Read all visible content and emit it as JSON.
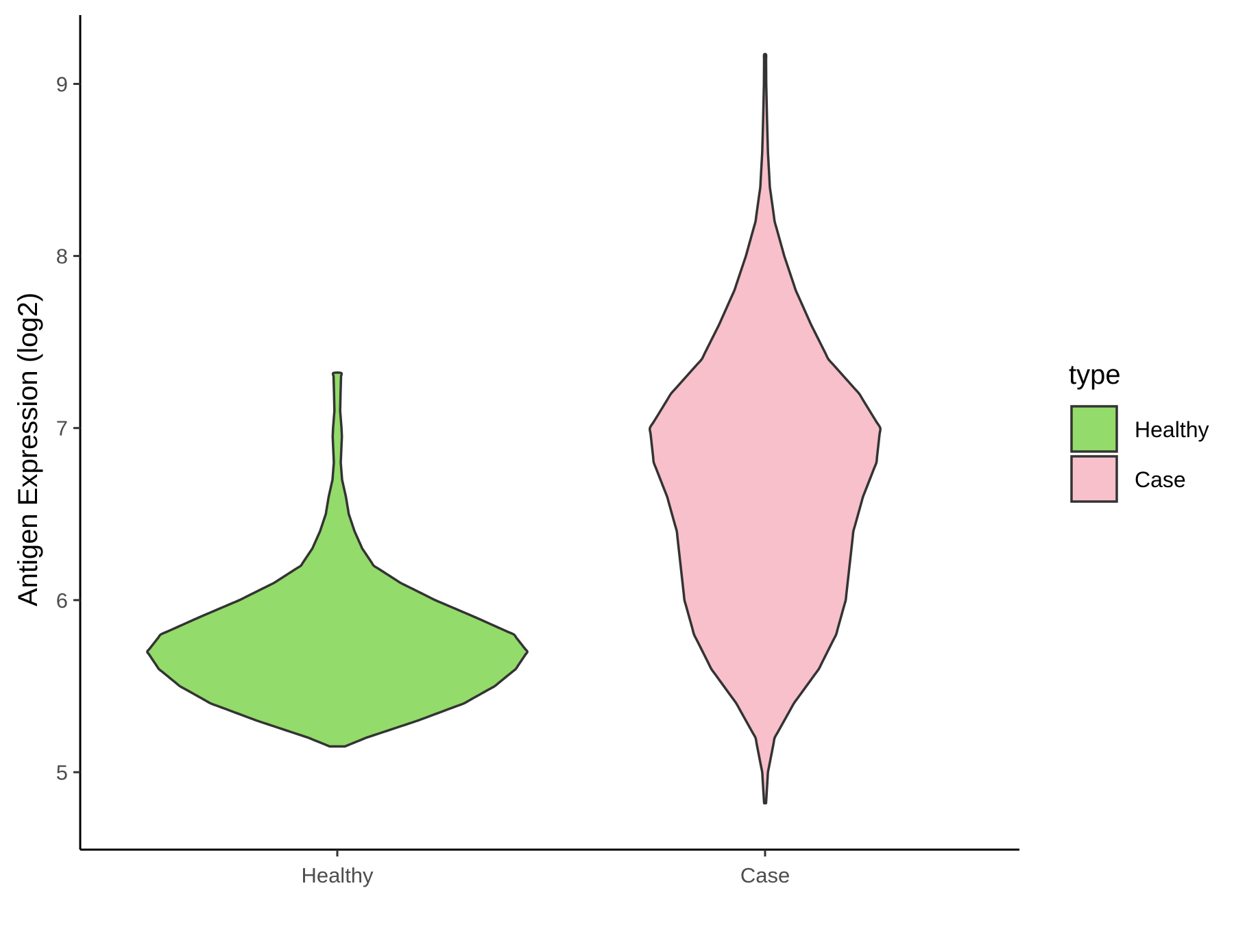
{
  "chart_data": {
    "type": "violin",
    "title": "",
    "xlabel": "",
    "ylabel": "Antigen Expression (log2)",
    "ylim": [
      4.55,
      9.4
    ],
    "yticks": [
      5,
      6,
      7,
      8,
      9
    ],
    "categories": [
      "Healthy",
      "Case"
    ],
    "grid": false,
    "legend": {
      "title": "type",
      "position": "right",
      "entries": [
        {
          "label": "Healthy",
          "color": "#93DB6A"
        },
        {
          "label": "Case",
          "color": "#F7C0CB"
        }
      ]
    },
    "series": [
      {
        "name": "Healthy",
        "color": "#93DB6A",
        "range": [
          5.15,
          7.32
        ],
        "density_profile": [
          [
            5.15,
            0.04
          ],
          [
            5.2,
            0.15
          ],
          [
            5.3,
            0.42
          ],
          [
            5.4,
            0.66
          ],
          [
            5.5,
            0.82
          ],
          [
            5.6,
            0.93
          ],
          [
            5.7,
            0.99
          ],
          [
            5.8,
            0.92
          ],
          [
            5.9,
            0.72
          ],
          [
            6.0,
            0.51
          ],
          [
            6.1,
            0.33
          ],
          [
            6.2,
            0.19
          ],
          [
            6.3,
            0.13
          ],
          [
            6.4,
            0.09
          ],
          [
            6.5,
            0.06
          ],
          [
            6.6,
            0.045
          ],
          [
            6.7,
            0.025
          ],
          [
            6.8,
            0.018
          ],
          [
            6.9,
            0.022
          ],
          [
            6.95,
            0.024
          ],
          [
            7.0,
            0.022
          ],
          [
            7.1,
            0.015
          ],
          [
            7.2,
            0.017
          ],
          [
            7.32,
            0.02
          ]
        ]
      },
      {
        "name": "Case",
        "color": "#F7C0CB",
        "range": [
          4.82,
          9.17
        ],
        "density_profile": [
          [
            4.82,
            0.005
          ],
          [
            5.0,
            0.015
          ],
          [
            5.2,
            0.05
          ],
          [
            5.4,
            0.15
          ],
          [
            5.6,
            0.28
          ],
          [
            5.8,
            0.37
          ],
          [
            6.0,
            0.42
          ],
          [
            6.2,
            0.44
          ],
          [
            6.4,
            0.46
          ],
          [
            6.6,
            0.51
          ],
          [
            6.8,
            0.58
          ],
          [
            7.0,
            0.6
          ],
          [
            7.2,
            0.49
          ],
          [
            7.4,
            0.33
          ],
          [
            7.6,
            0.24
          ],
          [
            7.8,
            0.16
          ],
          [
            8.0,
            0.1
          ],
          [
            8.2,
            0.05
          ],
          [
            8.4,
            0.025
          ],
          [
            8.6,
            0.015
          ],
          [
            8.8,
            0.01
          ],
          [
            9.0,
            0.006
          ],
          [
            9.17,
            0.005
          ]
        ]
      }
    ]
  }
}
